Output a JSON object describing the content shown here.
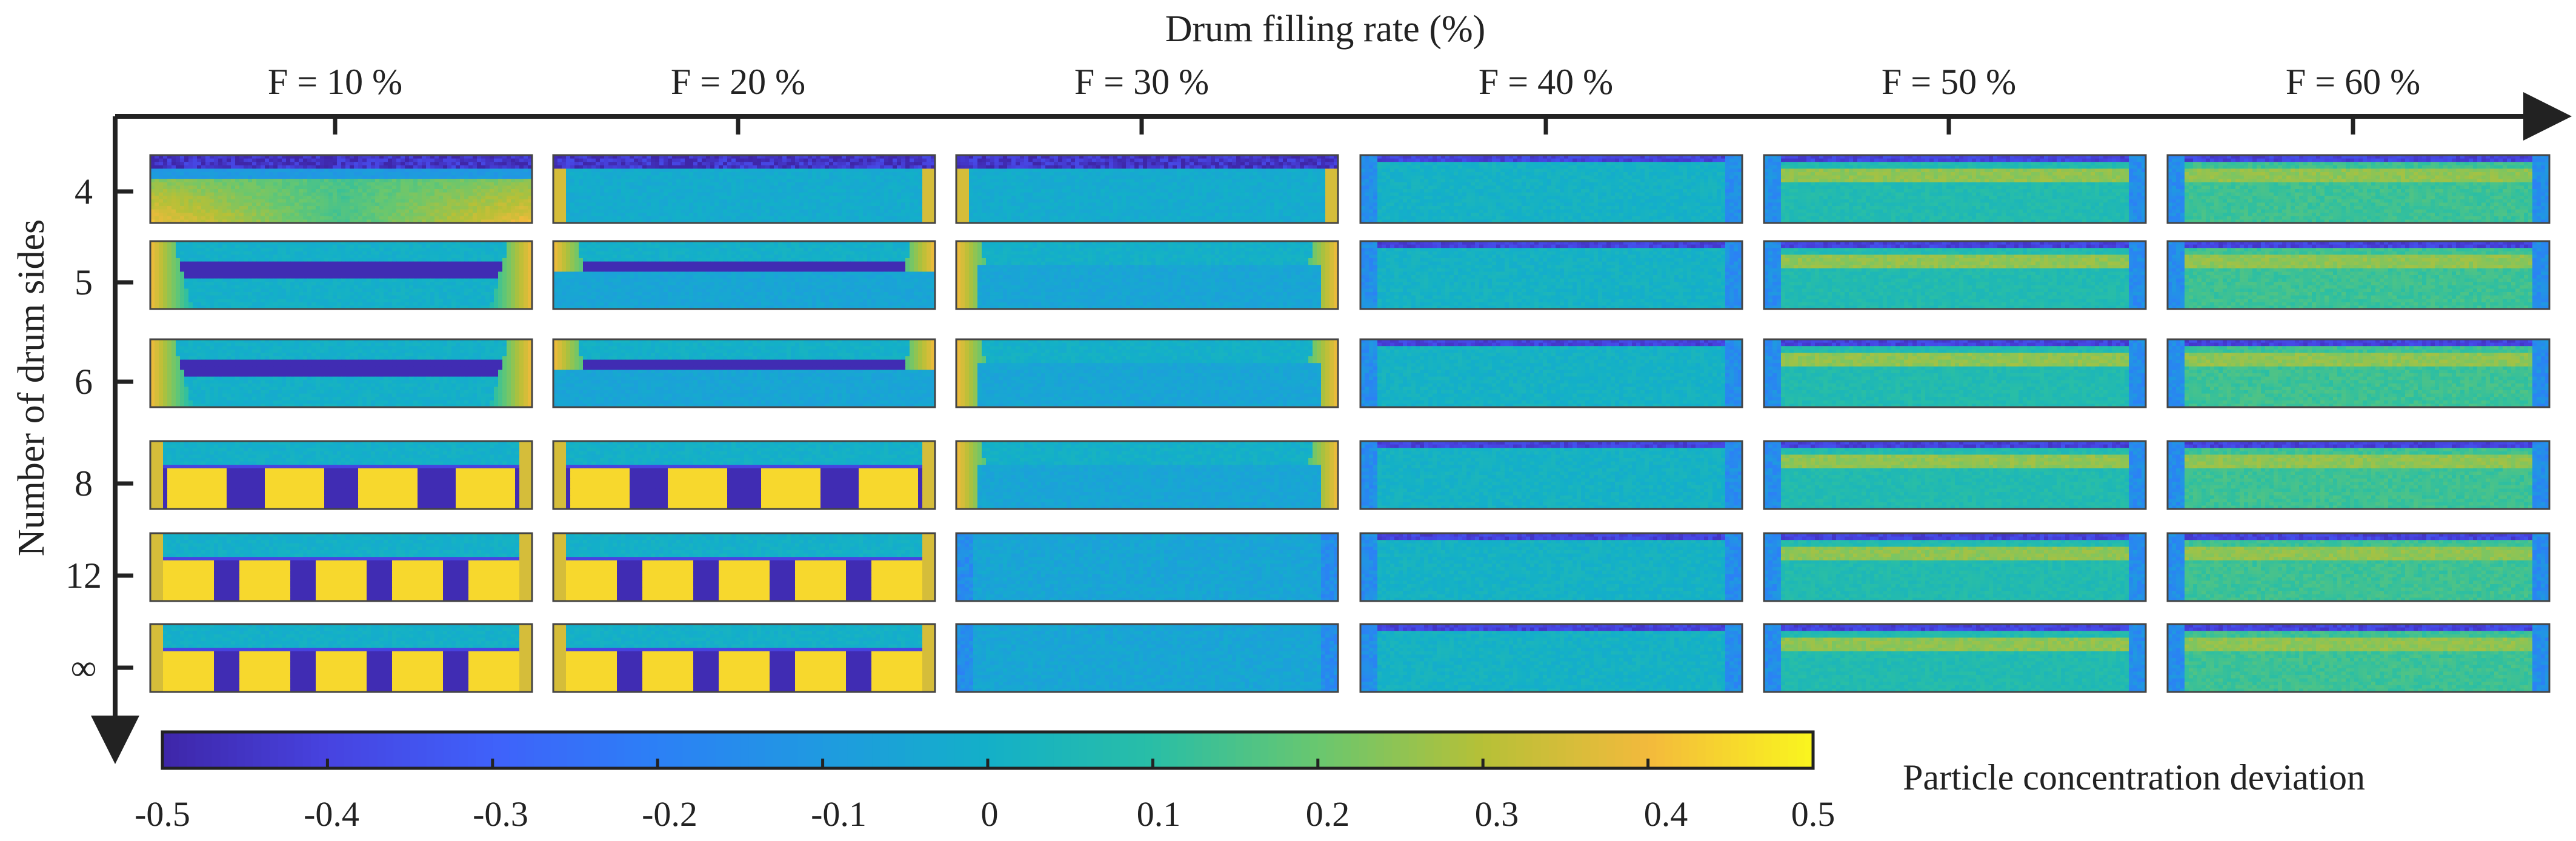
{
  "chart_data": {
    "type": "heatmap",
    "title": "Drum filling rate (%)",
    "ylabel": "Number of drum sides",
    "columns": [
      "F = 10 %",
      "F = 20 %",
      "F = 30 %",
      "F = 40 %",
      "F = 50 %",
      "F = 60 %"
    ],
    "rows": [
      "4",
      "5",
      "6",
      "8",
      "12",
      "∞"
    ],
    "colorbar": {
      "label": "Particle concentration deviation",
      "range": [
        -0.5,
        0.5
      ],
      "ticks": [
        "-0.5",
        "-0.4",
        "-0.3",
        "-0.2",
        "-0.1",
        "0",
        "0.1",
        "0.2",
        "0.3",
        "0.4",
        "0.5"
      ],
      "colors": [
        "#3e26a8",
        "#4743e0",
        "#3f61fa",
        "#2c80f6",
        "#1f9ae0",
        "#13b0c8",
        "#29bea6",
        "#69c76f",
        "#b6c037",
        "#f3ba3c",
        "#faf51e"
      ]
    },
    "panel_patterns": [
      [
        "edge-rich",
        "edge-rich",
        "edge-rich",
        "uniform",
        "uniform",
        "uniform"
      ],
      [
        "segregated-core",
        "segregated-core",
        "segregated-core",
        "uniform",
        "uniform",
        "uniform"
      ],
      [
        "segregated-core",
        "segregated-core",
        "segregated-core",
        "uniform",
        "uniform",
        "uniform"
      ],
      [
        "striped",
        "striped",
        "segregated-core",
        "uniform",
        "uniform",
        "uniform"
      ],
      [
        "striped",
        "striped",
        "uniform",
        "uniform",
        "uniform",
        "uniform"
      ],
      [
        "striped",
        "striped",
        "uniform",
        "uniform",
        "uniform",
        "uniform"
      ]
    ]
  }
}
